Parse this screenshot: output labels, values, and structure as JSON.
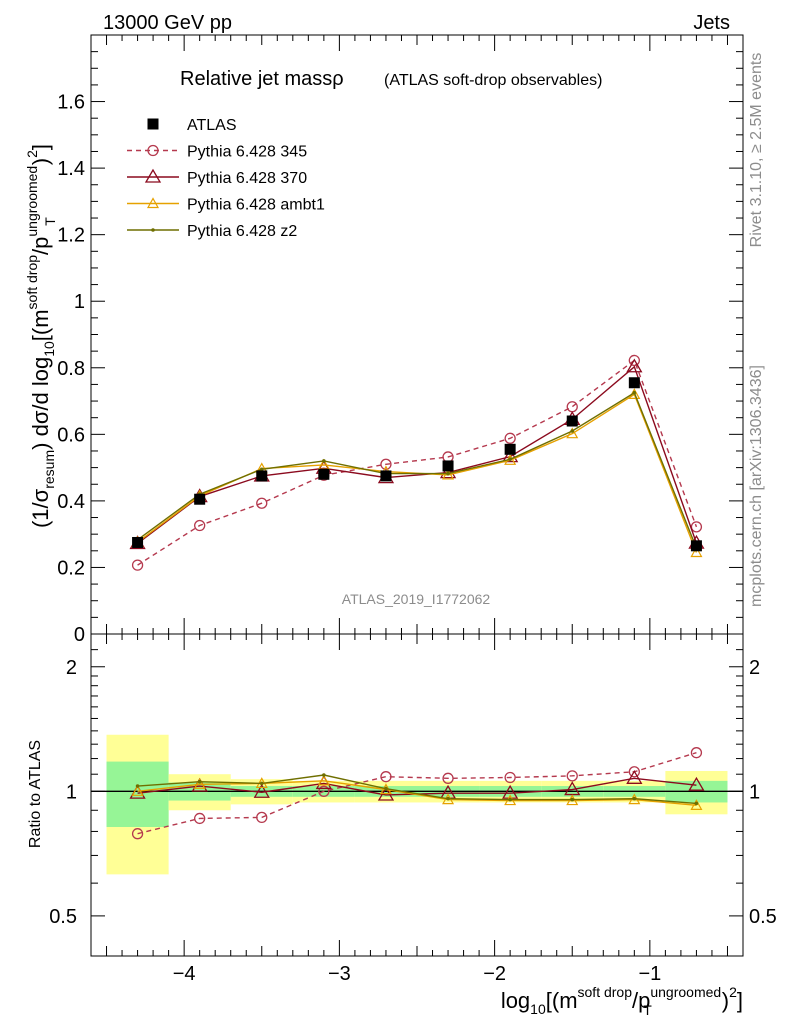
{
  "header": {
    "left": "13000 GeV pp",
    "right": "Jets"
  },
  "side_labels": {
    "rivet": "Rivet 3.1.10, ≥ 2.5M events",
    "mcplots": "mcplots.cern.ch [arXiv:1306.3436]"
  },
  "colors": {
    "atlas": "#000000",
    "p345": "#b5394e",
    "p370": "#8b0a1e",
    "ambt1": "#e6a100",
    "z2": "#6f6f00",
    "band_inner": "#96f596",
    "band_outer": "#ffff96"
  },
  "chart_data": {
    "type": "line",
    "title": "Relative jet massρ",
    "subtitle": "(ATLAS soft-drop observables)",
    "analysis_label": "ATLAS_2019_I1772062",
    "xlabel": {
      "base": "log",
      "sub10": "10",
      "paren_open": "[(m",
      "sup_sd": "soft drop",
      "slash_p": "/p",
      "sup_ungroomed": "ungroomed",
      "sub_T": "T",
      "sup_2": "2",
      "close": ")",
      "bracket": "]"
    },
    "ylabel": {
      "a": "(1/σ",
      "sub_resum": "resum",
      "b": ") dσ/d log",
      "sub10": "10",
      "c": "[(m",
      "sup_sd": "soft drop",
      "d": "/p",
      "sup_ungroomed": "ungroomed",
      "sub_T": "T",
      "e": ")",
      "sup_2": "2",
      "f": "]"
    },
    "ratio_ylabel": "Ratio to ATLAS",
    "xlim": [
      -4.6,
      -0.4
    ],
    "ylim_main": [
      0,
      1.8
    ],
    "ylim_ratio": [
      0.4,
      2.4
    ],
    "x_ticks": [
      -4,
      -3,
      -2,
      -1
    ],
    "x_tick_labels": [
      "−4",
      "−3",
      "−2",
      "−1"
    ],
    "y_ticks_main": [
      0,
      0.2,
      0.4,
      0.6,
      0.8,
      1,
      1.2,
      1.4,
      1.6
    ],
    "y_tick_labels_main": [
      "0",
      "0.2",
      "0.4",
      "0.6",
      "0.8",
      "1",
      "1.2",
      "1.4",
      "1.6"
    ],
    "y_ticks_ratio": [
      0.5,
      1,
      2
    ],
    "y_tick_labels_ratio": [
      "0.5",
      "1",
      "2"
    ],
    "bins": [
      [
        -4.5,
        -4.1
      ],
      [
        -4.1,
        -3.7
      ],
      [
        -3.7,
        -3.3
      ],
      [
        -3.3,
        -2.9
      ],
      [
        -2.9,
        -2.5
      ],
      [
        -2.5,
        -2.1
      ],
      [
        -2.1,
        -1.7
      ],
      [
        -1.7,
        -1.3
      ],
      [
        -1.3,
        -0.9
      ],
      [
        -0.9,
        -0.5
      ]
    ],
    "x": [
      -4.3,
      -3.9,
      -3.5,
      -3.1,
      -2.7,
      -2.3,
      -1.9,
      -1.5,
      -1.1,
      -0.7
    ],
    "atlas": [
      0.275,
      0.405,
      0.475,
      0.48,
      0.475,
      0.505,
      0.555,
      0.64,
      0.755,
      0.265
    ],
    "ratio_band_inner": [
      0.18,
      0.05,
      0.03,
      0.03,
      0.03,
      0.03,
      0.03,
      0.03,
      0.03,
      0.06
    ],
    "ratio_band_outer": [
      0.37,
      0.1,
      0.07,
      0.06,
      0.06,
      0.06,
      0.06,
      0.06,
      0.06,
      0.12
    ],
    "series": [
      {
        "name": "ATLAS",
        "key": "atlas",
        "values": [
          0.275,
          0.405,
          0.475,
          0.48,
          0.475,
          0.505,
          0.555,
          0.64,
          0.755,
          0.265
        ]
      },
      {
        "name": "Pythia 6.428 345",
        "key": "p345",
        "values": [
          0.207,
          0.326,
          0.393,
          0.477,
          0.51,
          0.532,
          0.588,
          0.683,
          0.822,
          0.322
        ]
      },
      {
        "name": "Pythia 6.428 370",
        "key": "p370",
        "values": [
          0.272,
          0.413,
          0.475,
          0.498,
          0.47,
          0.485,
          0.533,
          0.645,
          0.803,
          0.273
        ]
      },
      {
        "name": "Pythia 6.428 ambt1",
        "key": "ambt1",
        "values": [
          0.276,
          0.415,
          0.497,
          0.508,
          0.488,
          0.478,
          0.522,
          0.602,
          0.72,
          0.245
        ]
      },
      {
        "name": "Pythia 6.428 z2",
        "key": "z2",
        "values": [
          0.283,
          0.42,
          0.495,
          0.52,
          0.482,
          0.482,
          0.525,
          0.61,
          0.725,
          0.258
        ]
      }
    ],
    "ratios": {
      "p345": [
        0.79,
        0.86,
        0.865,
        1.0,
        1.085,
        1.075,
        1.08,
        1.09,
        1.115,
        1.24
      ],
      "p370": [
        0.99,
        1.03,
        0.995,
        1.045,
        0.98,
        0.99,
        0.99,
        1.01,
        1.075,
        1.035
      ],
      "ambt1": [
        1.0,
        1.04,
        1.045,
        1.06,
        1.01,
        0.955,
        0.95,
        0.95,
        0.955,
        0.925
      ],
      "z2": [
        1.03,
        1.055,
        1.045,
        1.095,
        1.015,
        0.96,
        0.955,
        0.955,
        0.96,
        0.935
      ]
    }
  }
}
